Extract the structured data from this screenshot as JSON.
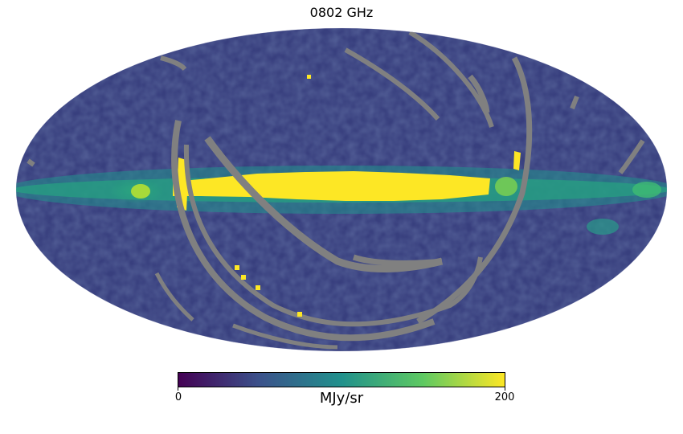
{
  "title": "0802 GHz",
  "colorbar": {
    "min_label": "0",
    "max_label": "200",
    "min": 0,
    "max": 200,
    "unit": "MJy/sr",
    "colormap": "viridis",
    "stops": [
      "#440154",
      "#3b528b",
      "#21918c",
      "#5ec962",
      "#fde725"
    ]
  },
  "map": {
    "projection": "Mollweide",
    "masked_color": "#808080",
    "background": "#ffffff"
  }
}
